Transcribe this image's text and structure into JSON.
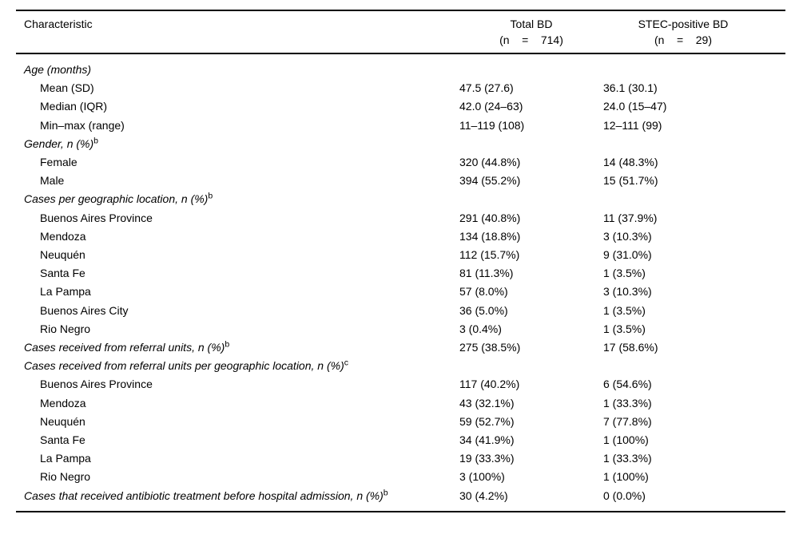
{
  "page": {
    "background_color": "#ffffff",
    "text_color": "#000000",
    "rule_color": "#000000"
  },
  "table": {
    "header": {
      "characteristic": "Characteristic",
      "total_title": "Total BD",
      "total_n": "(n    =    714)",
      "stec_title": "STEC-positive BD",
      "stec_n": "(n    =    29)"
    },
    "rows": [
      {
        "type": "section",
        "label": "Age (months)",
        "sup": "",
        "total": "",
        "stec": ""
      },
      {
        "type": "sub",
        "label": "Mean (SD)",
        "sup": "",
        "total": "47.5 (27.6)",
        "stec": "36.1 (30.1)"
      },
      {
        "type": "sub",
        "label": "Median (IQR)",
        "sup": "",
        "total": "42.0 (24–63)",
        "stec": "24.0 (15–47)"
      },
      {
        "type": "sub",
        "label": "Min–max (range)",
        "sup": "",
        "total": "11–119 (108)",
        "stec": "12–111 (99)"
      },
      {
        "type": "section",
        "label": "Gender, n (%)",
        "sup": "b",
        "total": "",
        "stec": ""
      },
      {
        "type": "sub",
        "label": "Female",
        "sup": "",
        "total": "320 (44.8%)",
        "stec": "14 (48.3%)"
      },
      {
        "type": "sub",
        "label": "Male",
        "sup": "",
        "total": "394 (55.2%)",
        "stec": "15 (51.7%)"
      },
      {
        "type": "section",
        "label": "Cases per geographic location, n (%)",
        "sup": "b",
        "total": "",
        "stec": ""
      },
      {
        "type": "sub",
        "label": "Buenos Aires Province",
        "sup": "",
        "total": "291 (40.8%)",
        "stec": "11 (37.9%)"
      },
      {
        "type": "sub",
        "label": "Mendoza",
        "sup": "",
        "total": "134 (18.8%)",
        "stec": "3 (10.3%)"
      },
      {
        "type": "sub",
        "label": "Neuquén",
        "sup": "",
        "total": "112 (15.7%)",
        "stec": "9 (31.0%)"
      },
      {
        "type": "sub",
        "label": "Santa Fe",
        "sup": "",
        "total": "81 (11.3%)",
        "stec": "1 (3.5%)"
      },
      {
        "type": "sub",
        "label": "La Pampa",
        "sup": "",
        "total": "57 (8.0%)",
        "stec": "3 (10.3%)"
      },
      {
        "type": "sub",
        "label": "Buenos Aires City",
        "sup": "",
        "total": "36 (5.0%)",
        "stec": "1 (3.5%)"
      },
      {
        "type": "sub",
        "label": "Rio Negro",
        "sup": "",
        "total": "3 (0.4%)",
        "stec": "1 (3.5%)"
      },
      {
        "type": "section",
        "label": "Cases received from referral units, n (%)",
        "sup": "b",
        "total": "275 (38.5%)",
        "stec": "17 (58.6%)"
      },
      {
        "type": "section",
        "label": "Cases received from referral units per geographic location, n (%)",
        "sup": "c",
        "total": "",
        "stec": ""
      },
      {
        "type": "sub",
        "label": "Buenos Aires Province",
        "sup": "",
        "total": "117 (40.2%)",
        "stec": "6 (54.6%)"
      },
      {
        "type": "sub",
        "label": "Mendoza",
        "sup": "",
        "total": "43 (32.1%)",
        "stec": "1 (33.3%)"
      },
      {
        "type": "sub",
        "label": "Neuquén",
        "sup": "",
        "total": "59 (52.7%)",
        "stec": "7 (77.8%)"
      },
      {
        "type": "sub",
        "label": "Santa Fe",
        "sup": "",
        "total": "34 (41.9%)",
        "stec": "1 (100%)"
      },
      {
        "type": "sub",
        "label": "La Pampa",
        "sup": "",
        "total": "19 (33.3%)",
        "stec": "1 (33.3%)"
      },
      {
        "type": "sub",
        "label": "Rio Negro",
        "sup": "",
        "total": "3 (100%)",
        "stec": "1 (100%)"
      },
      {
        "type": "section",
        "label": "Cases that received antibiotic treatment before hospital admission, n (%)",
        "sup": "b",
        "total": "30 (4.2%)",
        "stec": "0 (0.0%)"
      }
    ]
  }
}
